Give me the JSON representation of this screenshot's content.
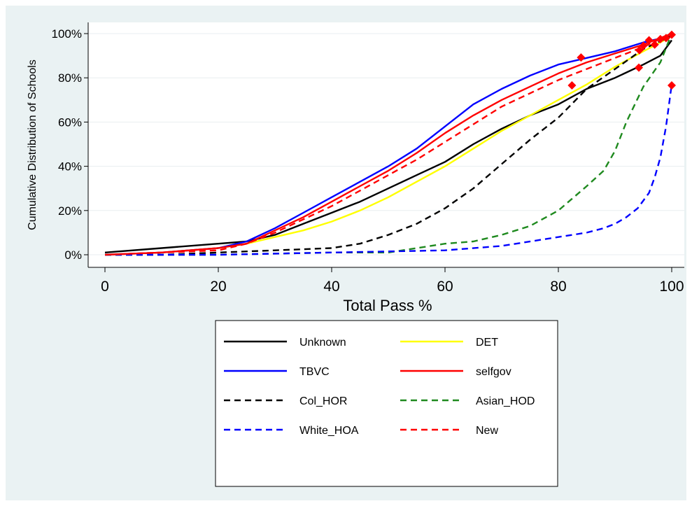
{
  "chart_data": {
    "type": "line",
    "title": "",
    "xlabel": "Total Pass %",
    "ylabel": "Cumulative Distribution of Schools",
    "xlim": [
      0,
      100
    ],
    "ylim": [
      0,
      100
    ],
    "x_ticks": [
      "0",
      "20",
      "40",
      "60",
      "80",
      "100"
    ],
    "y_ticks": [
      "0%",
      "20%",
      "40%",
      "60%",
      "80%",
      "100%"
    ],
    "grid": "horizontal",
    "legend_position": "bottom",
    "series": [
      {
        "name": "Unknown",
        "color": "#000000",
        "dash": "solid",
        "x": [
          0,
          10,
          20,
          25,
          30,
          35,
          40,
          45,
          50,
          55,
          60,
          65,
          70,
          75,
          80,
          85,
          90,
          95,
          98,
          100
        ],
        "y": [
          1,
          3,
          5,
          6,
          9,
          14,
          19,
          24,
          30,
          36,
          42,
          50,
          57,
          63,
          68,
          75,
          80,
          86,
          90,
          97
        ]
      },
      {
        "name": "DET",
        "color": "#ffff00",
        "dash": "solid",
        "x": [
          0,
          10,
          20,
          25,
          30,
          35,
          40,
          45,
          50,
          55,
          60,
          65,
          70,
          75,
          80,
          85,
          90,
          95,
          98,
          100
        ],
        "y": [
          0,
          1,
          3,
          5,
          8,
          11,
          15,
          20,
          26,
          33,
          40,
          48,
          56,
          63,
          70,
          77,
          85,
          92,
          96,
          99
        ]
      },
      {
        "name": "TBVC",
        "color": "#0000ff",
        "dash": "solid",
        "x": [
          0,
          10,
          20,
          25,
          30,
          35,
          40,
          45,
          50,
          55,
          60,
          65,
          70,
          75,
          80,
          85,
          90,
          95,
          100
        ],
        "y": [
          0,
          1,
          3,
          6,
          12,
          19,
          26,
          33,
          40,
          48,
          58,
          68,
          75,
          81,
          86,
          89,
          92,
          96,
          99
        ]
      },
      {
        "name": "selfgov",
        "color": "#ff0000",
        "dash": "solid",
        "x": [
          0,
          10,
          20,
          25,
          30,
          35,
          40,
          45,
          50,
          55,
          60,
          65,
          70,
          75,
          80,
          85,
          90,
          95,
          100
        ],
        "y": [
          0,
          1,
          3,
          5,
          11,
          17,
          24,
          31,
          38,
          46,
          55,
          63,
          70,
          76,
          82,
          87,
          91,
          95,
          100
        ]
      },
      {
        "name": "Col_HOR",
        "color": "#000000",
        "dash": "dashed",
        "x": [
          0,
          10,
          20,
          30,
          40,
          45,
          50,
          55,
          60,
          65,
          70,
          75,
          80,
          85,
          90,
          95,
          100
        ],
        "y": [
          0,
          0,
          1,
          2,
          3,
          5,
          9,
          14,
          21,
          30,
          41,
          52,
          62,
          75,
          84,
          93,
          99
        ]
      },
      {
        "name": "Asian_HOD",
        "color": "#1f8a1f",
        "dash": "dashed",
        "x": [
          0,
          20,
          40,
          50,
          55,
          60,
          65,
          70,
          75,
          80,
          85,
          88,
          90,
          92,
          95,
          98,
          100
        ],
        "y": [
          0,
          0,
          1,
          1,
          3,
          5,
          6,
          9,
          13,
          20,
          31,
          38,
          47,
          60,
          76,
          87,
          100
        ]
      },
      {
        "name": "White_HOA",
        "color": "#0000ff",
        "dash": "dashed",
        "x": [
          0,
          20,
          40,
          60,
          70,
          80,
          85,
          88,
          90,
          92,
          94,
          96,
          97,
          98,
          99,
          100
        ],
        "y": [
          0,
          0,
          1,
          2,
          4,
          8,
          10,
          12,
          14,
          17,
          21,
          28,
          35,
          44,
          58,
          77
        ]
      },
      {
        "name": "New",
        "color": "#ff0000",
        "dash": "dashed",
        "x": [
          0,
          10,
          20,
          25,
          30,
          35,
          40,
          45,
          50,
          55,
          60,
          65,
          70,
          75,
          80,
          85,
          90,
          95,
          100
        ],
        "y": [
          0,
          1,
          2,
          5,
          10,
          16,
          22,
          29,
          36,
          43,
          51,
          59,
          67,
          73,
          79,
          84,
          89,
          94,
          100
        ]
      }
    ],
    "markers": {
      "shape": "diamond",
      "color": "#ff0000",
      "points": [
        {
          "x": 82.4,
          "y": 76.6
        },
        {
          "x": 84,
          "y": 89.2
        },
        {
          "x": 94.2,
          "y": 84.6
        },
        {
          "x": 94.3,
          "y": 92.5
        },
        {
          "x": 95,
          "y": 94.5
        },
        {
          "x": 96,
          "y": 97
        },
        {
          "x": 97,
          "y": 95
        },
        {
          "x": 98,
          "y": 97.5
        },
        {
          "x": 99,
          "y": 98
        },
        {
          "x": 100,
          "y": 99.5
        },
        {
          "x": 100,
          "y": 76.6
        }
      ]
    }
  }
}
